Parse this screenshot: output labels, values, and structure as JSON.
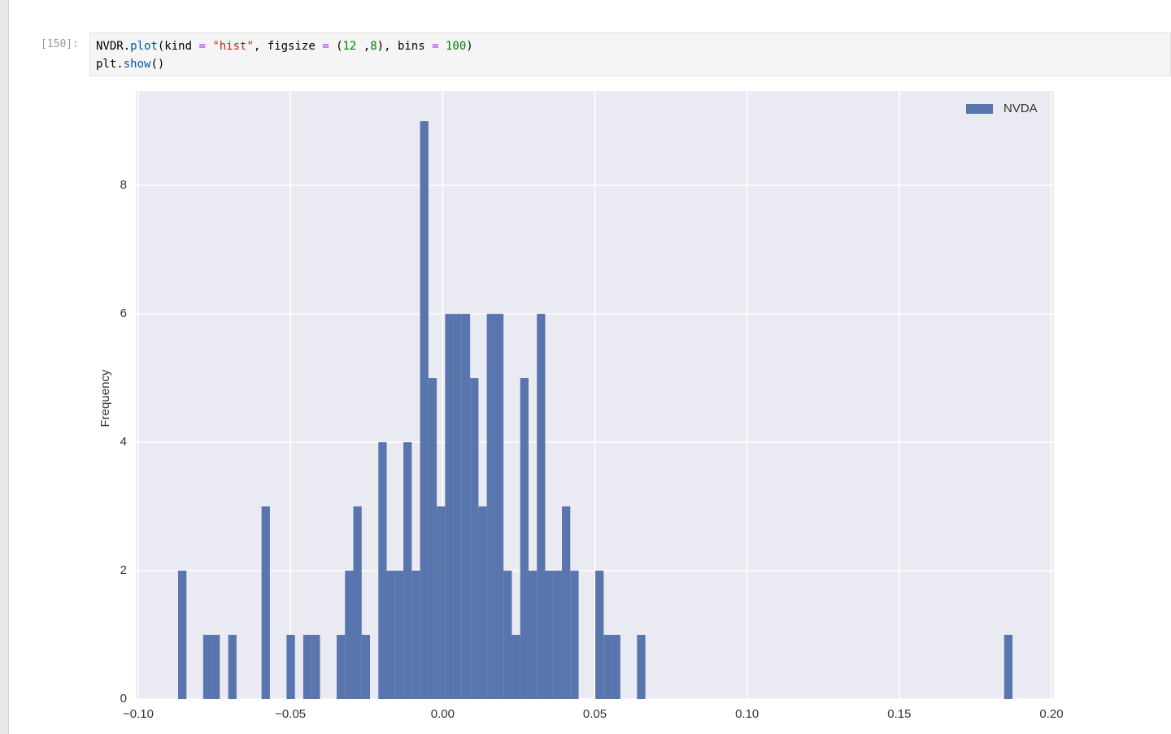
{
  "cell": {
    "prompt": "[150]:",
    "lines": [
      [
        "NVDR.",
        "plot",
        "(kind ",
        "=",
        " \"hist\"",
        ", figsize ",
        "=",
        " (",
        "12",
        " ,",
        "8",
        "), bins ",
        "=",
        " 100",
        ")"
      ],
      [
        "plt.",
        "show",
        "()"
      ]
    ]
  },
  "chart_data": {
    "type": "histogram",
    "ylabel": "Frequency",
    "series": [
      {
        "name": "NVDA",
        "color": "#5975ae",
        "values": [
          2,
          0,
          0,
          1,
          1,
          0,
          1,
          0,
          0,
          0,
          3,
          0,
          0,
          1,
          0,
          1,
          1,
          0,
          0,
          1,
          2,
          3,
          1,
          0,
          4,
          2,
          2,
          4,
          2,
          9,
          5,
          3,
          6,
          6,
          6,
          5,
          3,
          6,
          6,
          2,
          1,
          5,
          2,
          6,
          2,
          2,
          3,
          2,
          0,
          0,
          2,
          1,
          1,
          0,
          0,
          1,
          0,
          0,
          0,
          0,
          0,
          0,
          0,
          0,
          0,
          0,
          0,
          0,
          0,
          0,
          0,
          0,
          0,
          0,
          0,
          0,
          0,
          0,
          0,
          0,
          0,
          0,
          0,
          0,
          0,
          0,
          0,
          0,
          0,
          0,
          0,
          0,
          0,
          0,
          0,
          0,
          0,
          0,
          0,
          1
        ]
      }
    ],
    "bins": [
      -0.0869,
      -0.08416,
      -0.08142,
      -0.07868,
      -0.07594,
      -0.0732,
      -0.07045,
      -0.06771,
      -0.06497,
      -0.06223,
      -0.05949,
      -0.05675,
      -0.05401,
      -0.05127,
      -0.04853,
      -0.04579,
      -0.04304,
      -0.0403,
      -0.03756,
      -0.03482,
      -0.03208,
      -0.02934,
      -0.0266,
      -0.02386,
      -0.02112,
      -0.01838,
      -0.01563,
      -0.01289,
      -0.01015,
      -0.00741,
      -0.00467,
      -0.00193,
      0.00081,
      0.00355,
      0.00629,
      0.00903,
      0.01178,
      0.01452,
      0.01726,
      0.02,
      0.02274,
      0.02548,
      0.02822,
      0.03096,
      0.0337,
      0.03644,
      0.03919,
      0.04193,
      0.04467,
      0.04741,
      0.05015,
      0.05289,
      0.05563,
      0.05837,
      0.06111,
      0.06385,
      0.0666,
      0.06934,
      0.07208,
      0.07482,
      0.07756,
      0.0803,
      0.08304,
      0.08578,
      0.08852,
      0.09126,
      0.09401,
      0.09675,
      0.09949,
      0.10223,
      0.10497,
      0.10771,
      0.11045,
      0.11319,
      0.11593,
      0.11867,
      0.12142,
      0.12416,
      0.1269,
      0.12964,
      0.13238,
      0.13512,
      0.13786,
      0.1406,
      0.14334,
      0.14608,
      0.14883,
      0.15157,
      0.15431,
      0.15705,
      0.15979,
      0.16253,
      0.16527,
      0.16801,
      0.17075,
      0.17349,
      0.17624,
      0.17898,
      0.18172,
      0.18446,
      0.1872
    ],
    "xlim": [
      -0.1008,
      0.2008
    ],
    "ylim": [
      0,
      9.47
    ],
    "xticks": [
      {
        "value": -0.1,
        "label": "−0.10"
      },
      {
        "value": -0.05,
        "label": "−0.05"
      },
      {
        "value": 0,
        "label": "0.00"
      },
      {
        "value": 0.05,
        "label": "0.05"
      },
      {
        "value": 0.1,
        "label": "0.10"
      },
      {
        "value": 0.15,
        "label": "0.15"
      },
      {
        "value": 0.2,
        "label": "0.20"
      }
    ],
    "yticks": [
      0,
      2,
      4,
      6,
      8
    ],
    "grid": true,
    "legend": "upper right",
    "background": "#eaeaf2"
  }
}
